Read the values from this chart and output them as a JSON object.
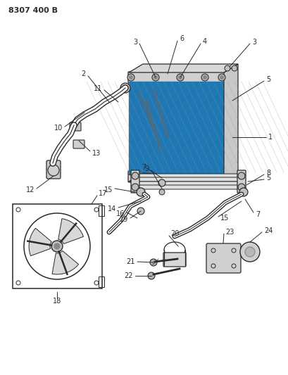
{
  "title": "8307 400 B",
  "bg_color": "#ffffff",
  "lc": "#2a2a2a",
  "fig_width": 4.1,
  "fig_height": 5.33,
  "dpi": 100
}
